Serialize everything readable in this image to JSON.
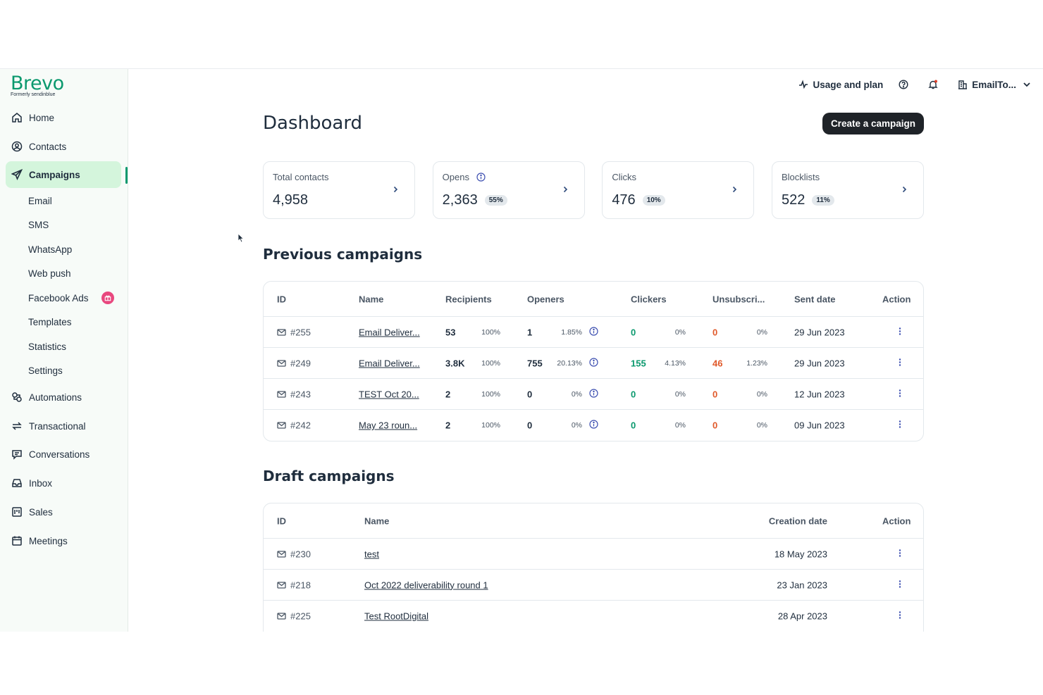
{
  "brand": {
    "name": "Brevo",
    "tagline": "Formerly sendinblue",
    "color": "#0b996e"
  },
  "sidebar": {
    "items": [
      {
        "label": "Home",
        "icon": "home-icon"
      },
      {
        "label": "Contacts",
        "icon": "contacts-icon"
      },
      {
        "label": "Campaigns",
        "icon": "send-icon",
        "active": true
      },
      {
        "label": "Automations",
        "icon": "automation-icon"
      },
      {
        "label": "Transactional",
        "icon": "transactional-icon"
      },
      {
        "label": "Conversations",
        "icon": "chat-icon"
      },
      {
        "label": "Inbox",
        "icon": "inbox-icon"
      },
      {
        "label": "Sales",
        "icon": "sales-icon"
      },
      {
        "label": "Meetings",
        "icon": "calendar-icon"
      }
    ],
    "campaign_subitems": [
      "Email",
      "SMS",
      "WhatsApp",
      "Web push",
      "Facebook Ads",
      "Templates",
      "Statistics",
      "Settings"
    ]
  },
  "topbar": {
    "usage": "Usage and plan",
    "account": "EmailTo..."
  },
  "main": {
    "title": "Dashboard",
    "create_button": "Create a campaign",
    "stats": [
      {
        "label": "Total contacts",
        "value": "4,958",
        "pill": ""
      },
      {
        "label": "Opens",
        "value": "2,363",
        "pill": "55%"
      },
      {
        "label": "Clicks",
        "value": "476",
        "pill": "10%"
      },
      {
        "label": "Blocklists",
        "value": "522",
        "pill": "11%"
      }
    ],
    "previous": {
      "title": "Previous campaigns",
      "headers": [
        "ID",
        "Name",
        "Recipients",
        "Openers",
        "Clickers",
        "Unsubscri...",
        "Sent date",
        "Action"
      ],
      "rows": [
        {
          "id": "#255",
          "name": "Email Deliver...",
          "recipients": "53",
          "recipients_pct": "100%",
          "openers": "1",
          "openers_pct": "1.85%",
          "clickers": "0",
          "clickers_pct": "0%",
          "unsub": "0",
          "unsub_pct": "0%",
          "date": "29 Jun 2023"
        },
        {
          "id": "#249",
          "name": "Email Deliver...",
          "recipients": "3.8K",
          "recipients_pct": "100%",
          "openers": "755",
          "openers_pct": "20.13%",
          "clickers": "155",
          "clickers_pct": "4.13%",
          "unsub": "46",
          "unsub_pct": "1.23%",
          "date": "29 Jun 2023"
        },
        {
          "id": "#243",
          "name": "TEST Oct 20...",
          "recipients": "2",
          "recipients_pct": "100%",
          "openers": "0",
          "openers_pct": "0%",
          "clickers": "0",
          "clickers_pct": "0%",
          "unsub": "0",
          "unsub_pct": "0%",
          "date": "12 Jun 2023"
        },
        {
          "id": "#242",
          "name": "May 23 roun...",
          "recipients": "2",
          "recipients_pct": "100%",
          "openers": "0",
          "openers_pct": "0%",
          "clickers": "0",
          "clickers_pct": "0%",
          "unsub": "0",
          "unsub_pct": "0%",
          "date": "09 Jun 2023"
        }
      ]
    },
    "drafts": {
      "title": "Draft campaigns",
      "headers": [
        "ID",
        "Name",
        "Creation date",
        "Action"
      ],
      "rows": [
        {
          "id": "#230",
          "name": "test",
          "date": "18 May 2023"
        },
        {
          "id": "#218",
          "name": "Oct 2022 deliverability round 1",
          "date": "23 Jan 2023"
        },
        {
          "id": "#225",
          "name": "Test RootDigital",
          "date": "28 Apr 2023"
        }
      ]
    }
  }
}
